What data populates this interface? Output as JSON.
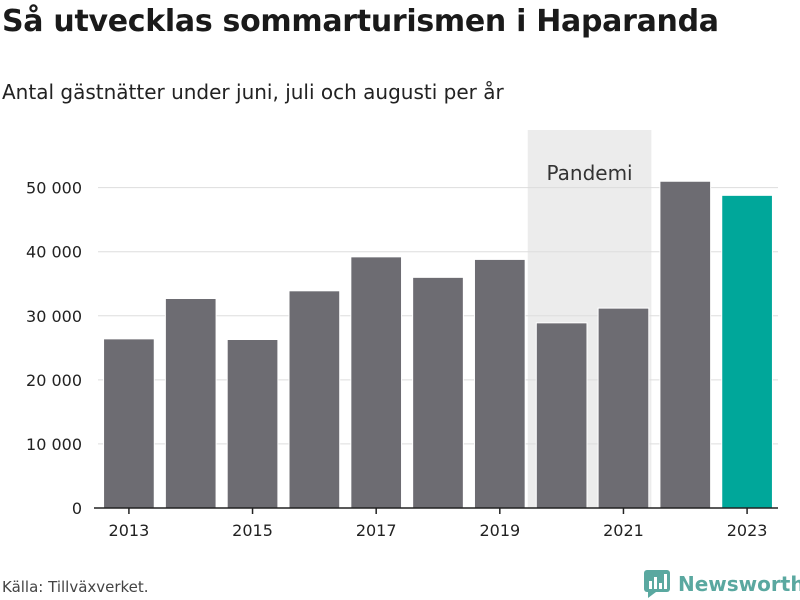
{
  "title": "Så utvecklas sommarturismen i Haparanda",
  "subtitle": "Antal gästnätter under juni, juli och augusti per år",
  "source": "Källa: Tillväxverket.",
  "brand": {
    "name": "Newsworthy",
    "icon": "newsworthy-logo-icon",
    "color": "#5aa8a0"
  },
  "colors": {
    "bar": "#6d6c72",
    "highlight": "#00a79a",
    "band": "#ececec",
    "grid": "#dddddd",
    "axis": "#222222"
  },
  "chart_data": {
    "type": "bar",
    "title": "Så utvecklas sommarturismen i Haparanda",
    "subtitle": "Antal gästnätter under juni, juli och augusti per år",
    "categories": [
      "2013",
      "2014",
      "2015",
      "2016",
      "2017",
      "2018",
      "2019",
      "2020",
      "2021",
      "2022",
      "2023"
    ],
    "values": [
      26400,
      32700,
      26300,
      33900,
      39200,
      36000,
      38800,
      28900,
      31200,
      51000,
      48800
    ],
    "highlight": "2023",
    "xticks": [
      "2013",
      "2015",
      "2017",
      "2019",
      "2021",
      "2023"
    ],
    "yticks": [
      0,
      10000,
      20000,
      30000,
      40000,
      50000
    ],
    "ytick_labels": [
      "0",
      "10 000",
      "20 000",
      "30 000",
      "40 000",
      "50 000"
    ],
    "ylim": [
      0,
      59000
    ],
    "annotation": {
      "label": "Pandemi",
      "from": "2020",
      "to": "2021"
    },
    "grid": true,
    "xlabel": "",
    "ylabel": ""
  }
}
